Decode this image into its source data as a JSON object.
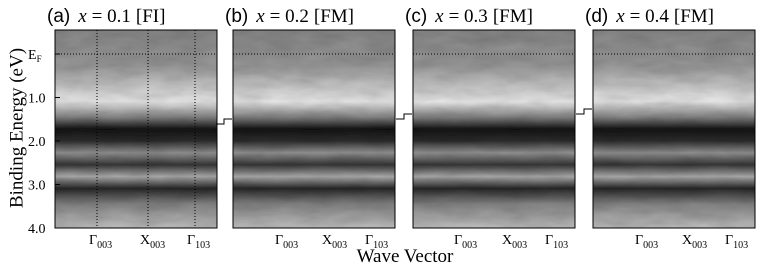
{
  "figure": {
    "y_axis": {
      "label": "Binding Energy (eV)",
      "ticks": [
        {
          "value": 0,
          "label": "E",
          "sub": "F"
        },
        {
          "value": 1,
          "label": "1.0"
        },
        {
          "value": 2,
          "label": "2.0"
        },
        {
          "value": 3,
          "label": "3.0"
        },
        {
          "value": 4,
          "label": "4.0"
        }
      ]
    },
    "x_axis": {
      "label": "Wave Vector"
    },
    "panels": [
      {
        "letter": "(a)",
        "variable": "x",
        "equals": "= 0.1",
        "phase": "[FI]",
        "k_labels": [
          {
            "symbol": "Γ",
            "sub": "003"
          },
          {
            "symbol": "X",
            "sub": "003"
          },
          {
            "symbol": "Γ",
            "sub": "103"
          }
        ]
      },
      {
        "letter": "(b)",
        "variable": "x",
        "equals": "= 0.2",
        "phase": "[FM]",
        "k_labels": [
          {
            "symbol": "Γ",
            "sub": "003"
          },
          {
            "symbol": "X",
            "sub": "003"
          },
          {
            "symbol": "Γ",
            "sub": "103"
          }
        ]
      },
      {
        "letter": "(c)",
        "variable": "x",
        "equals": "= 0.3",
        "phase": "[FM]",
        "k_labels": [
          {
            "symbol": "Γ",
            "sub": "003"
          },
          {
            "symbol": "X",
            "sub": "003"
          },
          {
            "symbol": "Γ",
            "sub": "103"
          }
        ]
      },
      {
        "letter": "(d)",
        "variable": "x",
        "equals": "= 0.4",
        "phase": "[FM]",
        "k_labels": [
          {
            "symbol": "Γ",
            "sub": "003"
          },
          {
            "symbol": "X",
            "sub": "003"
          },
          {
            "symbol": "Γ",
            "sub": "103"
          }
        ]
      }
    ]
  }
}
